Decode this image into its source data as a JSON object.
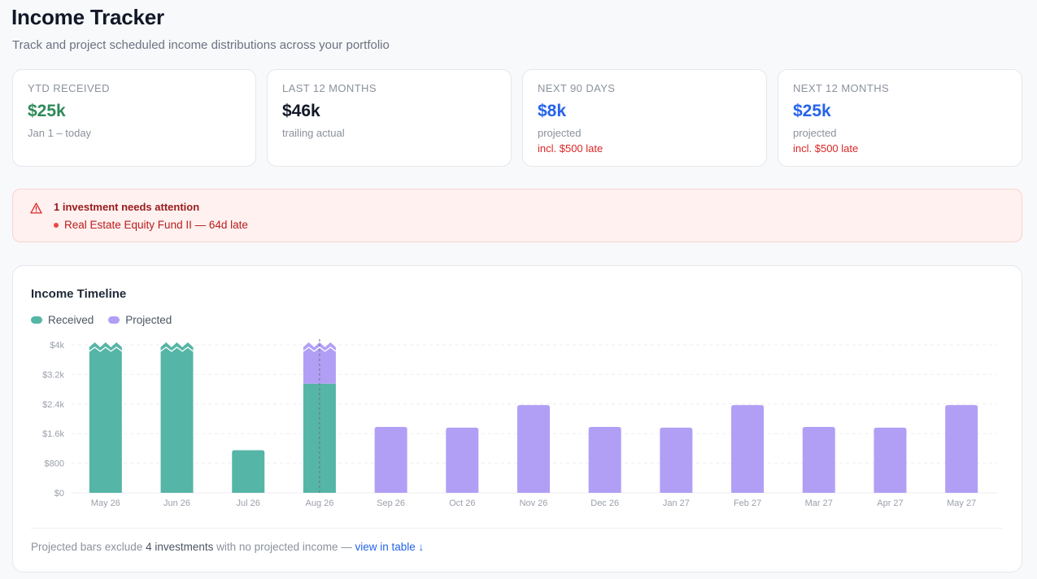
{
  "header": {
    "title": "Income Tracker",
    "subtitle": "Track and project scheduled income distributions across your portfolio"
  },
  "stats": [
    {
      "label": "YTD RECEIVED",
      "value": "$25k",
      "sub": "Jan 1 – today",
      "late": ""
    },
    {
      "label": "LAST 12 MONTHS",
      "value": "$46k",
      "sub": "trailing actual",
      "late": ""
    },
    {
      "label": "NEXT 90 DAYS",
      "value": "$8k",
      "sub": "projected",
      "late": "incl. $500 late"
    },
    {
      "label": "NEXT 12 MONTHS",
      "value": "$25k",
      "sub": "projected",
      "late": "incl. $500 late"
    }
  ],
  "alert": {
    "title": "1 investment needs attention",
    "items": [
      "Real Estate Equity Fund II — 64d late"
    ],
    "icon": "warning-triangle-icon"
  },
  "chart_card": {
    "title": "Income Timeline",
    "legend": [
      {
        "name": "Received",
        "color": "#55b5a6"
      },
      {
        "name": "Projected",
        "color": "#b19ff5"
      }
    ],
    "footnote": {
      "prefix": "Projected bars exclude ",
      "count": "4 investments",
      "suffix": " with no projected income — ",
      "link": "view in table ↓"
    }
  },
  "chart_data": {
    "type": "bar",
    "stacked": true,
    "categories": [
      "May 26",
      "Jun 26",
      "Jul 26",
      "Aug 26",
      "Sep 26",
      "Oct 26",
      "Nov 26",
      "Dec 26",
      "Jan 27",
      "Feb 27",
      "Mar 27",
      "Apr 27",
      "May 27"
    ],
    "series": [
      {
        "name": "Received",
        "color": "#55b5a6",
        "values": [
          4000,
          4000,
          1150,
          2950,
          0,
          0,
          0,
          0,
          0,
          0,
          0,
          0,
          0
        ]
      },
      {
        "name": "Projected",
        "color": "#b19ff5",
        "values": [
          0,
          0,
          0,
          1050,
          1780,
          1760,
          2370,
          1780,
          1760,
          2370,
          1780,
          1760,
          2370
        ]
      }
    ],
    "clipped": [
      true,
      true,
      false,
      true,
      false,
      false,
      false,
      false,
      false,
      false,
      false,
      false,
      false
    ],
    "today_marker": "Aug 26",
    "yticks": [
      0,
      800,
      1600,
      2400,
      3200,
      4000
    ],
    "ytick_labels": [
      "$0",
      "$800",
      "$1.6k",
      "$2.4k",
      "$3.2k",
      "$4k"
    ],
    "ylim": [
      0,
      4000
    ],
    "grid": true,
    "legend": "top-left"
  }
}
